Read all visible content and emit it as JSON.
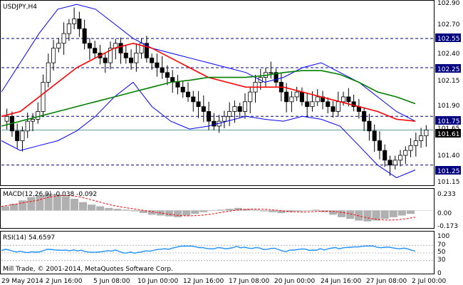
{
  "main_panel": {
    "title": "USDJPY,H4",
    "price_axis_labels": [
      "102.90",
      "102.70",
      "102.40",
      "102.15",
      "101.90",
      "101.65",
      "101.40",
      "101.15"
    ],
    "levels": [
      {
        "price": 102.55,
        "label": "102.55"
      },
      {
        "price": 102.25,
        "label": "102.25"
      },
      {
        "price": 101.75,
        "label": "101.75"
      },
      {
        "price": 101.25,
        "label": "101.25"
      }
    ],
    "current_price": 101.61,
    "current_price_label": "101.61",
    "watermark": "Mill Trade, © 2001-2014, MetaQuotes Software Corp.",
    "colors": {
      "bollinger": "#0000ff",
      "ma_fast": "#ff0000",
      "ma_slow": "#008000",
      "candles": "#000000",
      "levels": "#000080",
      "current_line": "#5f9ea0"
    }
  },
  "macd_panel": {
    "title": "MACD(12,26,9) -0.038 -0.092",
    "axis_labels": [
      "0.233",
      "0.00",
      "-0.173"
    ],
    "colors": {
      "histogram": "#b0b0b0",
      "signal": "#ff0000"
    }
  },
  "rsi_panel": {
    "title": "RSI(14) 54.6597",
    "axis_labels": [
      "100",
      "70",
      "50",
      "30",
      "0"
    ],
    "colors": {
      "line": "#1e90ff",
      "levels": "#808080"
    }
  },
  "time_axis": {
    "labels": [
      "29 May 2014",
      "2 Jun 16:00",
      "5 Jun 08:00",
      "10 Jun 00:00",
      "12 Jun 16:00",
      "17 Jun 08:00",
      "20 Jun 00:00",
      "24 Jun 16:00",
      "27 Jun 08:00",
      "2 Jul 00:00"
    ]
  },
  "chart_data": {
    "type": "candlestick",
    "symbol": "USDJPY",
    "timeframe": "H4",
    "ylim": [
      101.05,
      102.93
    ],
    "close_series": [
      101.75,
      101.6,
      101.5,
      101.6,
      101.7,
      101.72,
      101.8,
      102.1,
      102.3,
      102.45,
      102.5,
      102.6,
      102.7,
      102.75,
      102.65,
      102.5,
      102.45,
      102.4,
      102.35,
      102.3,
      102.45,
      102.5,
      102.4,
      102.35,
      102.3,
      102.4,
      102.5,
      102.35,
      102.3,
      102.25,
      102.2,
      102.15,
      102.1,
      102.05,
      102.0,
      101.95,
      101.9,
      101.85,
      101.8,
      101.7,
      101.65,
      101.7,
      101.75,
      101.8,
      101.85,
      101.8,
      101.9,
      102.0,
      102.1,
      102.15,
      102.2,
      102.2,
      102.1,
      102.0,
      101.9,
      101.95,
      102.0,
      101.9,
      101.85,
      101.9,
      101.95,
      101.9,
      101.85,
      101.8,
      101.9,
      101.95,
      101.9,
      101.85,
      101.8,
      101.7,
      101.6,
      101.5,
      101.4,
      101.3,
      101.25,
      101.3,
      101.35,
      101.4,
      101.45,
      101.5,
      101.55,
      101.61
    ],
    "bollinger_upper": [
      102.0,
      102.3,
      102.6,
      102.85,
      102.9,
      102.85,
      102.7,
      102.55,
      102.45,
      102.4,
      102.35,
      102.3,
      102.25,
      102.2,
      102.1,
      102.15,
      102.25,
      102.3,
      102.2,
      102.1,
      101.95,
      101.8,
      101.7
    ],
    "bollinger_lower": [
      101.5,
      101.4,
      101.45,
      101.5,
      101.6,
      101.75,
      101.95,
      102.1,
      101.85,
      101.7,
      101.62,
      101.65,
      101.7,
      101.75,
      101.72,
      101.7,
      101.75,
      101.72,
      101.65,
      101.45,
      101.25,
      101.12,
      101.2
    ],
    "ma_fast": [
      101.75,
      101.8,
      101.95,
      102.1,
      102.25,
      102.35,
      102.45,
      102.5,
      102.45,
      102.35,
      102.25,
      102.15,
      102.1,
      102.05,
      102.05,
      102.05,
      102.0,
      101.95,
      101.9,
      101.85,
      101.8,
      101.72,
      101.7
    ],
    "ma_slow": [
      101.65,
      101.7,
      101.75,
      101.8,
      101.85,
      101.9,
      101.95,
      102.0,
      102.05,
      102.1,
      102.12,
      102.15,
      102.15,
      102.15,
      102.17,
      102.2,
      102.22,
      102.22,
      102.18,
      102.1,
      102.0,
      101.95,
      101.88
    ],
    "macd": {
      "value": -0.038,
      "signal": -0.092,
      "ylim": [
        -0.2,
        0.25
      ]
    },
    "rsi": {
      "value": 54.6597,
      "levels": [
        30,
        50,
        70
      ],
      "ylim": [
        0,
        100
      ]
    }
  }
}
